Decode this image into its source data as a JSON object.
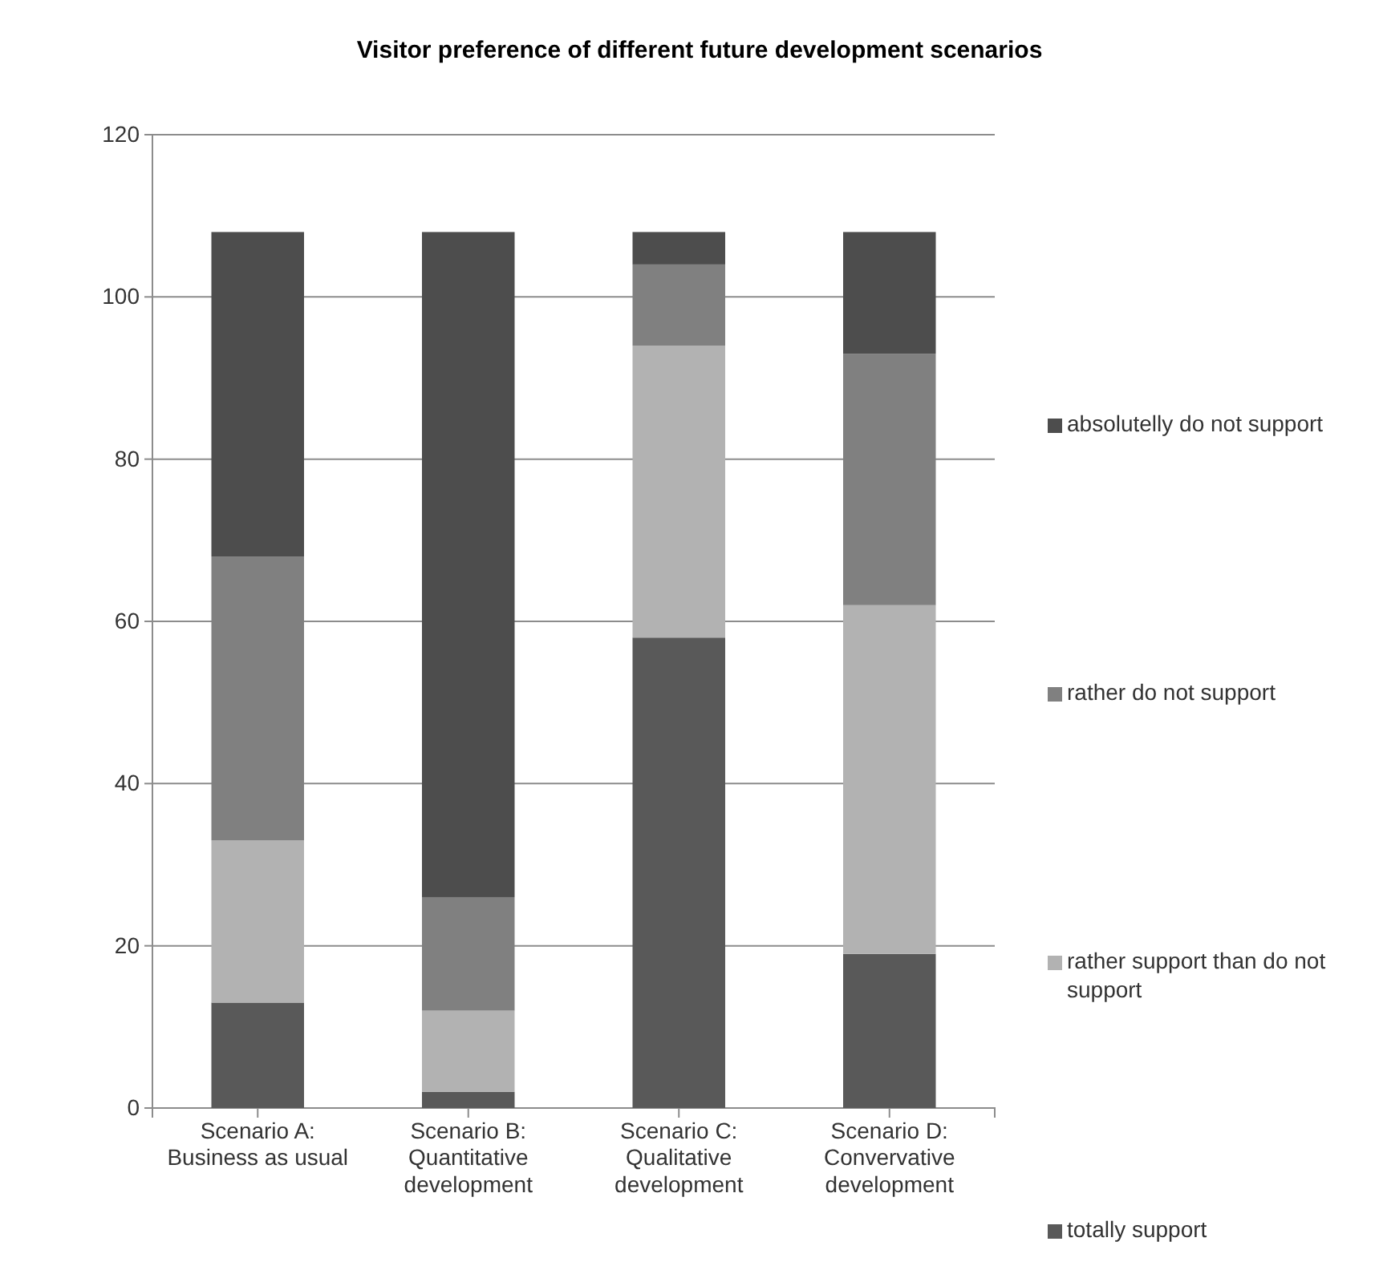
{
  "chart_data": {
    "type": "bar",
    "title": "Visitor preference of different future development scenarios",
    "categories": [
      "Scenario A: Business as usual",
      "Scenario B: Quantitative development",
      "Scenario C: Qualitative development",
      "Scenario D: Convervative development"
    ],
    "stacked": true,
    "series": [
      {
        "name": "totally support",
        "color": "#595959",
        "values": [
          13,
          2,
          58,
          19
        ]
      },
      {
        "name": "rather support than do not support",
        "color": "#b2b2b2",
        "values": [
          20,
          10,
          36,
          43
        ]
      },
      {
        "name": "rather do not support",
        "color": "#808080",
        "values": [
          35,
          14,
          10,
          31
        ]
      },
      {
        "name": "absolutelly do not support",
        "color": "#4d4d4d",
        "values": [
          40,
          82,
          4,
          15
        ]
      }
    ],
    "ylim": [
      0,
      120
    ],
    "yticks": [
      0,
      20,
      40,
      60,
      80,
      100,
      120
    ],
    "grid": "y",
    "legend": "right"
  }
}
